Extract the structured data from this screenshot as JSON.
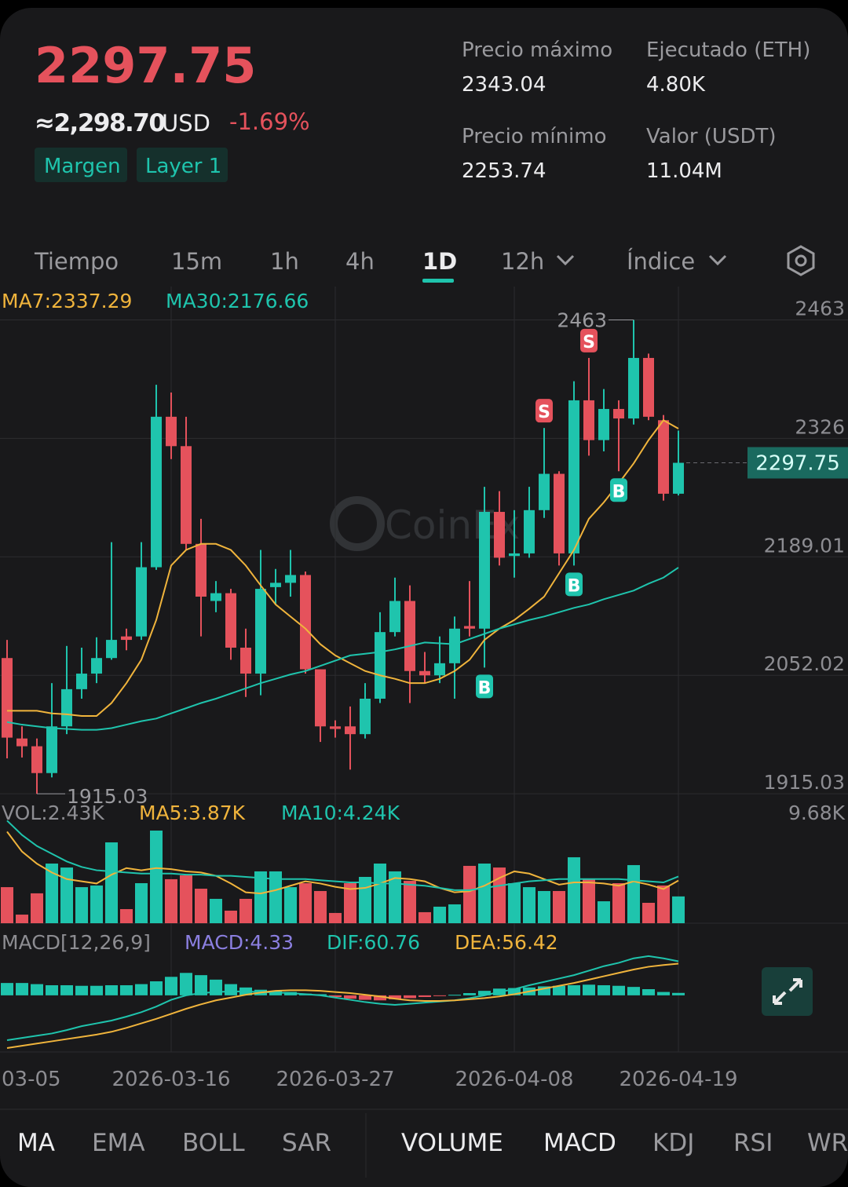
{
  "header": {
    "price": "2297.75",
    "approx": "≈2,298.70",
    "currency": "USD",
    "change": "-1.69%",
    "tags": [
      "Margen",
      "Layer 1"
    ],
    "stats": [
      {
        "label": "Precio máximo",
        "value": 2343.04
      },
      {
        "label": "Ejecutado (ETH)",
        "value": "4.80K"
      },
      {
        "label": "Precio mínimo",
        "value": 2253.74
      },
      {
        "label": "Valor (USDT)",
        "value": "11.04M"
      }
    ]
  },
  "timeframe_tabs": [
    "Tiempo",
    "15m",
    "1h",
    "4h",
    "1D",
    "12h",
    "Índice"
  ],
  "watermark": "CoinEx",
  "chart_data": [
    {
      "type": "candlestick",
      "categories": [
        "03-05",
        null,
        null,
        null,
        null,
        null,
        null,
        null,
        null,
        null,
        null,
        "2026-03-16",
        null,
        null,
        null,
        null,
        null,
        null,
        null,
        null,
        null,
        null,
        "2026-03-27",
        null,
        null,
        null,
        null,
        null,
        null,
        null,
        null,
        null,
        null,
        null,
        "2026-04-08",
        null,
        null,
        null,
        null,
        null,
        null,
        null,
        null,
        null,
        null,
        "2026-04-19"
      ],
      "open": [
        2072,
        1979,
        1970,
        1939,
        1993,
        2036,
        2054,
        2072,
        2097,
        2097,
        2177,
        2351,
        2317,
        2204,
        2138,
        2147,
        2084,
        2054,
        2154,
        2159,
        2168,
        2059,
        1993,
        1993,
        1984,
        2025,
        2102,
        2138,
        2057,
        2052,
        2066,
        2109,
        2106,
        2241,
        2190,
        2193,
        2243,
        2285,
        2193,
        2370,
        2324,
        2360,
        2349,
        2419,
        2347,
        2262
      ],
      "high": [
        2093,
        1993,
        1979,
        2043,
        2086,
        2084,
        2096,
        2206,
        2106,
        2206,
        2388,
        2379,
        2351,
        2233,
        2161,
        2152,
        2106,
        2197,
        2175,
        2197,
        2172,
        2059,
        2000,
        2016,
        2043,
        2125,
        2165,
        2156,
        2079,
        2097,
        2120,
        2161,
        2270,
        2265,
        2243,
        2270,
        2338,
        2288,
        2392,
        2419,
        2383,
        2370,
        2463,
        2424,
        2353,
        2335
      ],
      "low": [
        1956,
        1957,
        1915.03,
        1934,
        1984,
        2025,
        2043,
        2070,
        2081,
        2093,
        2174,
        2302,
        2197,
        2097,
        2125,
        2070,
        2027,
        2029,
        2134,
        2143,
        2054,
        1975,
        1980,
        1943,
        1979,
        2020,
        2097,
        2020,
        2043,
        2043,
        2025,
        2097,
        2061,
        2179,
        2165,
        2188,
        2234,
        2179,
        2179,
        2306,
        2311,
        2288,
        2342,
        2347,
        2254,
        2260
      ],
      "close": [
        1980,
        1970,
        1939,
        1993,
        2036,
        2054,
        2072,
        2093,
        2093,
        2177,
        2351,
        2317,
        2204,
        2143,
        2147,
        2084,
        2054,
        2152,
        2159,
        2168,
        2059,
        1993,
        1990,
        1984,
        2025,
        2102,
        2138,
        2057,
        2052,
        2066,
        2106,
        2106,
        2241,
        2188,
        2193,
        2243,
        2285,
        2193,
        2370,
        2324,
        2360,
        2349,
        2419,
        2351,
        2262,
        2297.75
      ],
      "ylim": [
        1907,
        2497
      ],
      "yticks": [
        1915.03,
        2052.02,
        2189.01,
        2326,
        2463
      ],
      "grid": true,
      "up_color": "#1fc4ad",
      "down_color": "#e5525c",
      "series": [
        {
          "name": "MA7:2337.29",
          "color": "#f0b43c",
          "values": [
            2011,
            2011,
            2011,
            2008,
            2007,
            2005,
            2005,
            2020,
            2043,
            2070,
            2116,
            2179,
            2197,
            2204,
            2204,
            2197,
            2179,
            2156,
            2134,
            2120,
            2106,
            2088,
            2075,
            2066,
            2057,
            2052,
            2048,
            2043,
            2043,
            2048,
            2057,
            2070,
            2093,
            2106,
            2116,
            2129,
            2143,
            2170,
            2197,
            2233,
            2252,
            2274,
            2297,
            2324,
            2347,
            2337.29
          ]
        },
        {
          "name": "MA30:2176.66",
          "color": "#1fc4ad",
          "values": [
            1998,
            1995,
            1993,
            1991,
            1990,
            1989,
            1989,
            1991,
            1995,
            1999,
            2002,
            2008,
            2014,
            2020,
            2025,
            2031,
            2037,
            2043,
            2048,
            2053,
            2057,
            2063,
            2069,
            2075,
            2077,
            2079,
            2082,
            2086,
            2090,
            2089,
            2088,
            2094,
            2100,
            2106,
            2111,
            2116,
            2120,
            2125,
            2130,
            2134,
            2140,
            2145,
            2150,
            2158,
            2165,
            2176.66
          ]
        }
      ],
      "signals": [
        {
          "label": "B",
          "index": 32
        },
        {
          "label": "S",
          "index": 36
        },
        {
          "label": "B",
          "index": 38
        },
        {
          "label": "S",
          "index": 39
        },
        {
          "label": "B",
          "index": 41
        }
      ]
    },
    {
      "type": "bar",
      "legend": "VOL:2.43K",
      "values": [
        3.27,
        0.78,
        2.71,
        5.41,
        5.05,
        3.27,
        3.42,
        7.33,
        1.28,
        3.63,
        8.4,
        3.99,
        4.34,
        3.13,
        2.21,
        1.14,
        2.21,
        4.7,
        4.7,
        3.27,
        3.63,
        2.92,
        0.93,
        3.63,
        4.2,
        5.41,
        4.7,
        3.84,
        1.0,
        1.5,
        1.71,
        5.2,
        5.41,
        5.05,
        3.63,
        3.27,
        2.92,
        2.92,
        5.98,
        3.99,
        1.99,
        3.63,
        5.27,
        1.85,
        3.42,
        2.43
      ],
      "ylim": [
        0,
        9.68
      ],
      "yticks": [
        {
          "value": 9.68,
          "label": "9.68K"
        }
      ],
      "series": [
        {
          "name": "MA5:3.87K",
          "color": "#f0b43c",
          "values": [
            8.3,
            6.5,
            5.4,
            4.6,
            4.0,
            3.8,
            3.6,
            4.4,
            5.0,
            4.8,
            5.0,
            4.9,
            4.7,
            4.6,
            4.3,
            3.6,
            2.8,
            2.7,
            3.0,
            3.4,
            3.8,
            3.6,
            3.3,
            3.1,
            3.2,
            3.6,
            4.1,
            4.0,
            3.8,
            3.2,
            2.8,
            2.9,
            3.4,
            4.1,
            4.7,
            4.5,
            4.0,
            3.5,
            3.7,
            3.7,
            3.6,
            3.4,
            3.8,
            3.5,
            3.1,
            3.87
          ]
        },
        {
          "name": "MA10:4.24K",
          "color": "#1fc4ad",
          "values": [
            9.3,
            8.0,
            7.0,
            6.3,
            5.6,
            5.1,
            4.8,
            4.7,
            4.6,
            4.5,
            4.5,
            4.5,
            4.4,
            4.4,
            4.3,
            4.3,
            4.2,
            4.1,
            4.0,
            4.0,
            4.0,
            3.9,
            3.8,
            3.7,
            3.7,
            3.6,
            3.6,
            3.5,
            3.4,
            3.2,
            3.0,
            3.0,
            3.2,
            3.4,
            3.6,
            3.8,
            3.9,
            4.0,
            4.0,
            4.0,
            4.0,
            4.0,
            3.9,
            3.8,
            3.7,
            4.24
          ]
        }
      ]
    },
    {
      "type": "bar",
      "title": "MACD[12,26,9]",
      "name": "MACD:4.33",
      "name_color": "#8b7fe0",
      "values": [
        22,
        22,
        20,
        18,
        18,
        17,
        17,
        18,
        18,
        20,
        25,
        33,
        40,
        36,
        28,
        20,
        14,
        10,
        8,
        6,
        3,
        2,
        -3,
        -6,
        -8,
        -9,
        -7,
        -5,
        -3,
        -1,
        1,
        4,
        8,
        12,
        13,
        14,
        16,
        17,
        18,
        19,
        18,
        17,
        15,
        11,
        6,
        4.33
      ],
      "ylim": [
        -101,
        116
      ],
      "series": [
        {
          "name": "DIF:60.76",
          "color": "#1fc4ad",
          "values": [
            -80,
            -76,
            -72,
            -68,
            -62,
            -55,
            -50,
            -45,
            -38,
            -30,
            -20,
            -8,
            0,
            4,
            6,
            7,
            7,
            6,
            5,
            4,
            2,
            0,
            -4,
            -8,
            -12,
            -15,
            -17,
            -15,
            -13,
            -11,
            -9,
            -5,
            0,
            6,
            11,
            18,
            24,
            30,
            36,
            44,
            52,
            58,
            66,
            70,
            66,
            60.76
          ]
        },
        {
          "name": "DEA:56.42",
          "color": "#f0b43c",
          "values": [
            -94,
            -90,
            -86,
            -82,
            -78,
            -74,
            -70,
            -65,
            -58,
            -50,
            -42,
            -33,
            -24,
            -16,
            -9,
            -4,
            1,
            5,
            8,
            9,
            9,
            8,
            6,
            4,
            1,
            -2,
            -6,
            -9,
            -10,
            -10,
            -9,
            -7,
            -5,
            -2,
            2,
            7,
            12,
            17,
            22,
            28,
            34,
            40,
            46,
            51,
            54,
            56.42
          ]
        }
      ]
    }
  ],
  "indicator_tabs": {
    "main": [
      "MA",
      "EMA",
      "BOLL",
      "SAR"
    ],
    "sub": [
      "VOLUME",
      "MACD",
      "KDJ",
      "RSI",
      "WR"
    ]
  }
}
